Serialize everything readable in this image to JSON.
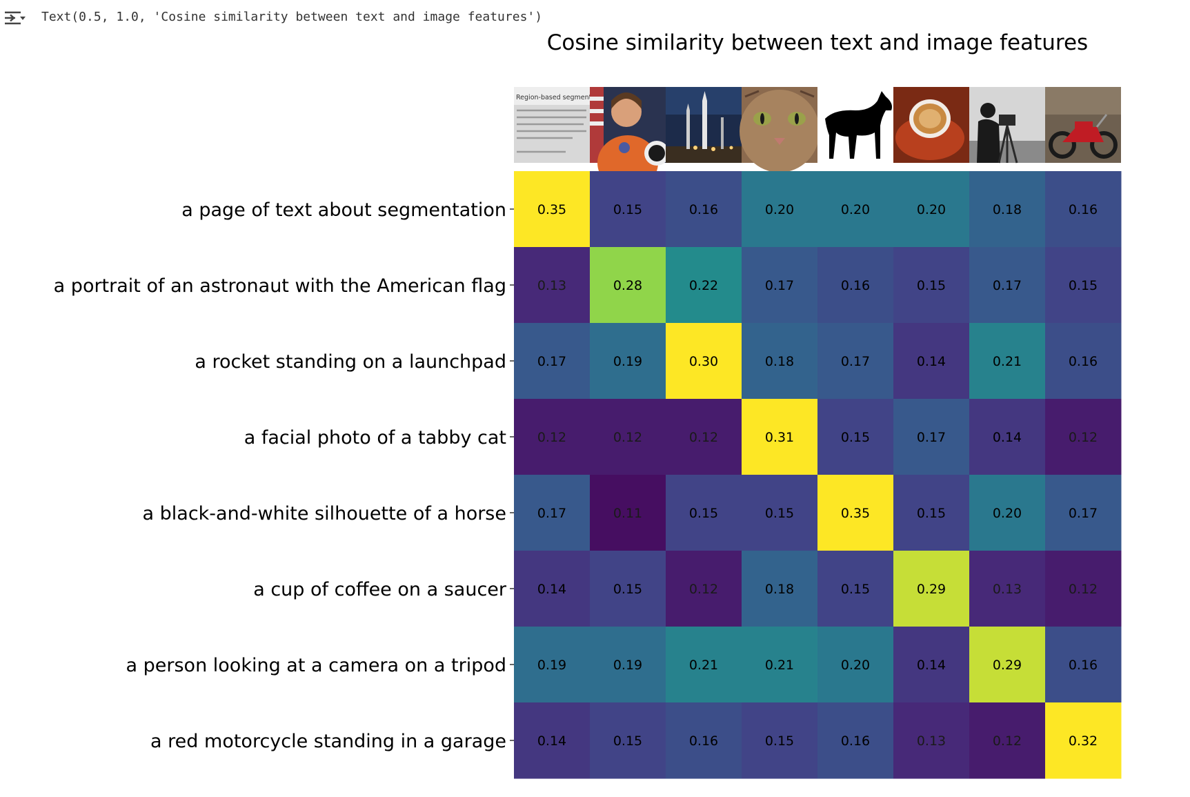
{
  "output": {
    "toggle_icon": "collapse-output-icon",
    "text": "Text(0.5, 1.0, 'Cosine similarity between text and image features')"
  },
  "chart_data": {
    "type": "heatmap",
    "title": "Cosine similarity between text and image features",
    "colormap": "viridis",
    "color_range": [
      0.1,
      0.3
    ],
    "rows": [
      "a page of text about segmentation",
      "a portrait of an astronaut with the American flag",
      "a rocket standing on a launchpad",
      "a facial photo of a tabby cat",
      "a black-and-white silhouette of a horse",
      "a cup of coffee on a saucer",
      "a person looking at a camera on a tripod",
      "a red motorcycle standing in a garage"
    ],
    "columns": [
      "page-of-text-image",
      "astronaut-image",
      "rocket-image",
      "cat-image",
      "horse-image",
      "coffee-image",
      "camera-tripod-image",
      "motorcycle-image"
    ],
    "values": [
      [
        0.35,
        0.15,
        0.16,
        0.2,
        0.2,
        0.2,
        0.18,
        0.16
      ],
      [
        0.13,
        0.28,
        0.22,
        0.17,
        0.16,
        0.15,
        0.17,
        0.15
      ],
      [
        0.17,
        0.19,
        0.3,
        0.18,
        0.17,
        0.14,
        0.21,
        0.16
      ],
      [
        0.12,
        0.12,
        0.12,
        0.31,
        0.15,
        0.17,
        0.14,
        0.12
      ],
      [
        0.17,
        0.11,
        0.15,
        0.15,
        0.35,
        0.15,
        0.2,
        0.17
      ],
      [
        0.14,
        0.15,
        0.12,
        0.18,
        0.15,
        0.29,
        0.13,
        0.12
      ],
      [
        0.19,
        0.19,
        0.21,
        0.21,
        0.2,
        0.14,
        0.29,
        0.16
      ],
      [
        0.14,
        0.15,
        0.16,
        0.15,
        0.16,
        0.13,
        0.12,
        0.32
      ]
    ],
    "value_format": "0.00",
    "thumbnail_text": {
      "heading": "Region-based segmentation"
    }
  }
}
